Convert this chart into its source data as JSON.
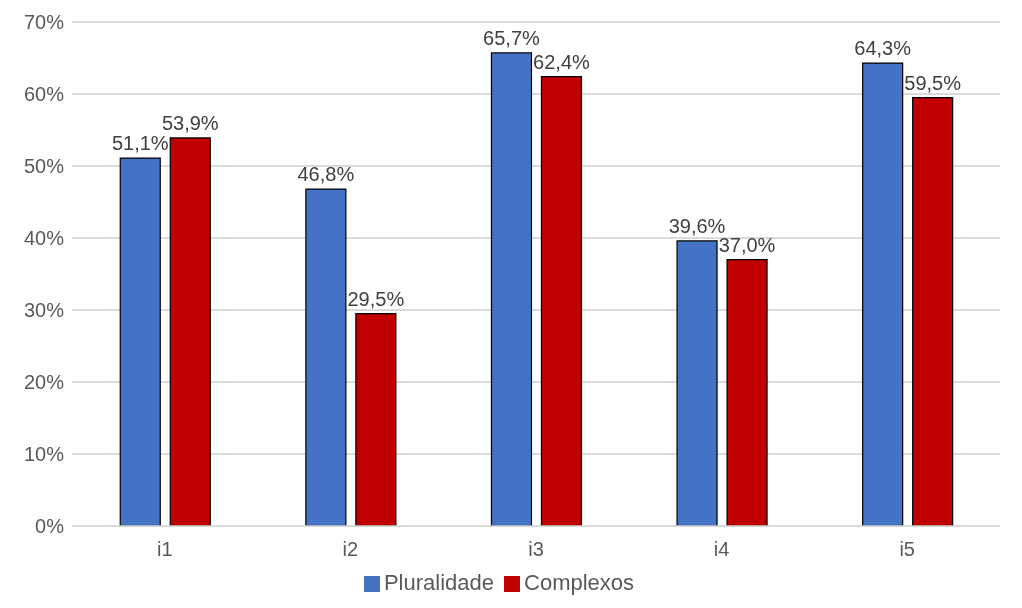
{
  "chart_data": {
    "type": "bar",
    "categories": [
      "i1",
      "i2",
      "i3",
      "i4",
      "i5"
    ],
    "series": [
      {
        "name": "Pluralidade",
        "color": "#4472c4",
        "values": [
          51.1,
          46.8,
          65.7,
          39.6,
          64.3
        ],
        "value_labels": [
          "51,1%",
          "46,8%",
          "65,7%",
          "39,6%",
          "64,3%"
        ]
      },
      {
        "name": "Complexos",
        "color": "#c00000",
        "values": [
          53.9,
          29.5,
          62.4,
          37.0,
          59.5
        ],
        "value_labels": [
          "53,9%",
          "29,5%",
          "62,4%",
          "37,0%",
          "59,5%"
        ]
      }
    ],
    "ylim": [
      0,
      70
    ],
    "yticks": [
      {
        "value": 0,
        "label": "0%"
      },
      {
        "value": 10,
        "label": "10%"
      },
      {
        "value": 20,
        "label": "20%"
      },
      {
        "value": 30,
        "label": "30%"
      },
      {
        "value": 40,
        "label": "40%"
      },
      {
        "value": 50,
        "label": "50%"
      },
      {
        "value": 60,
        "label": "60%"
      },
      {
        "value": 70,
        "label": "70%"
      }
    ],
    "grid": "y",
    "legend": "bottom"
  }
}
